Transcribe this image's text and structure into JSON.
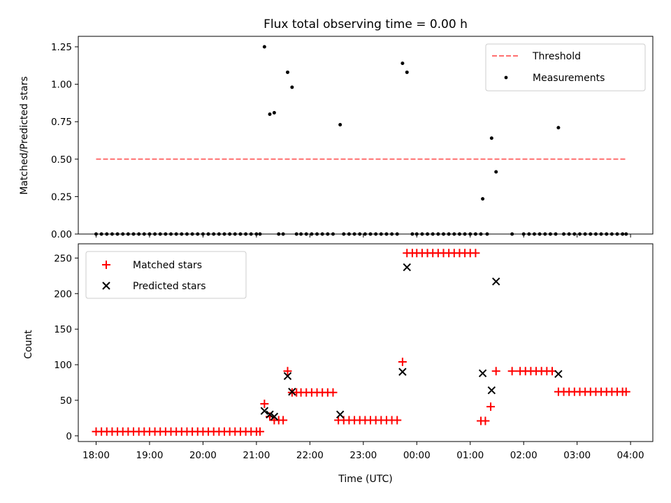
{
  "chart_data": [
    {
      "type": "line",
      "title": "Flux total observing time = 0.00 h",
      "xlabel": "",
      "ylabel": "Matched/Predicted stars",
      "xlim": [
        "17:40",
        "04:25"
      ],
      "ylim": [
        0,
        1.32
      ],
      "yticks": [
        "0.00",
        "0.25",
        "0.50",
        "0.75",
        "1.00",
        "1.25"
      ],
      "legend_position": "upper right",
      "series": [
        {
          "name": "Threshold",
          "style": "dashed",
          "color": "#ff6f6f",
          "points": [
            {
              "x": "18:00",
              "y": 0.5
            },
            {
              "x": "03:55",
              "y": 0.5
            }
          ]
        },
        {
          "name": "Measurements",
          "style": "dots",
          "color": "#000000",
          "points": [
            {
              "x": "18:00",
              "y": 0
            },
            {
              "x": "18:06",
              "y": 0
            },
            {
              "x": "18:12",
              "y": 0
            },
            {
              "x": "18:18",
              "y": 0
            },
            {
              "x": "18:24",
              "y": 0
            },
            {
              "x": "18:30",
              "y": 0
            },
            {
              "x": "18:36",
              "y": 0
            },
            {
              "x": "18:42",
              "y": 0
            },
            {
              "x": "18:48",
              "y": 0
            },
            {
              "x": "18:54",
              "y": 0
            },
            {
              "x": "19:00",
              "y": 0
            },
            {
              "x": "19:06",
              "y": 0
            },
            {
              "x": "19:12",
              "y": 0
            },
            {
              "x": "19:18",
              "y": 0
            },
            {
              "x": "19:24",
              "y": 0
            },
            {
              "x": "19:30",
              "y": 0
            },
            {
              "x": "19:36",
              "y": 0
            },
            {
              "x": "19:42",
              "y": 0
            },
            {
              "x": "19:48",
              "y": 0
            },
            {
              "x": "19:54",
              "y": 0
            },
            {
              "x": "20:00",
              "y": 0
            },
            {
              "x": "20:06",
              "y": 0
            },
            {
              "x": "20:12",
              "y": 0
            },
            {
              "x": "20:18",
              "y": 0
            },
            {
              "x": "20:24",
              "y": 0
            },
            {
              "x": "20:30",
              "y": 0
            },
            {
              "x": "20:36",
              "y": 0
            },
            {
              "x": "20:42",
              "y": 0
            },
            {
              "x": "20:48",
              "y": 0
            },
            {
              "x": "20:54",
              "y": 0
            },
            {
              "x": "21:00",
              "y": 0
            },
            {
              "x": "21:04",
              "y": 0
            },
            {
              "x": "21:09",
              "y": 1.25
            },
            {
              "x": "21:15",
              "y": 0.8
            },
            {
              "x": "21:20",
              "y": 0.81
            },
            {
              "x": "21:25",
              "y": 0
            },
            {
              "x": "21:30",
              "y": 0
            },
            {
              "x": "21:35",
              "y": 1.08
            },
            {
              "x": "21:40",
              "y": 0.98
            },
            {
              "x": "21:45",
              "y": 0
            },
            {
              "x": "21:50",
              "y": 0
            },
            {
              "x": "21:56",
              "y": 0
            },
            {
              "x": "22:02",
              "y": 0
            },
            {
              "x": "22:08",
              "y": 0
            },
            {
              "x": "22:14",
              "y": 0
            },
            {
              "x": "22:20",
              "y": 0
            },
            {
              "x": "22:26",
              "y": 0
            },
            {
              "x": "22:34",
              "y": 0.73
            },
            {
              "x": "22:38",
              "y": 0
            },
            {
              "x": "22:44",
              "y": 0
            },
            {
              "x": "22:50",
              "y": 0
            },
            {
              "x": "22:56",
              "y": 0
            },
            {
              "x": "23:02",
              "y": 0
            },
            {
              "x": "23:08",
              "y": 0
            },
            {
              "x": "23:14",
              "y": 0
            },
            {
              "x": "23:20",
              "y": 0
            },
            {
              "x": "23:26",
              "y": 0
            },
            {
              "x": "23:32",
              "y": 0
            },
            {
              "x": "23:38",
              "y": 0
            },
            {
              "x": "23:44",
              "y": 1.14
            },
            {
              "x": "23:49",
              "y": 1.08
            },
            {
              "x": "23:55",
              "y": 0
            },
            {
              "x": "00:00",
              "y": 0
            },
            {
              "x": "00:06",
              "y": 0
            },
            {
              "x": "00:12",
              "y": 0
            },
            {
              "x": "00:18",
              "y": 0
            },
            {
              "x": "00:24",
              "y": 0
            },
            {
              "x": "00:30",
              "y": 0
            },
            {
              "x": "00:36",
              "y": 0
            },
            {
              "x": "00:42",
              "y": 0
            },
            {
              "x": "00:48",
              "y": 0
            },
            {
              "x": "00:54",
              "y": 0
            },
            {
              "x": "01:00",
              "y": 0
            },
            {
              "x": "01:06",
              "y": 0
            },
            {
              "x": "01:12",
              "y": 0
            },
            {
              "x": "01:14",
              "y": 0.235
            },
            {
              "x": "01:19",
              "y": 0
            },
            {
              "x": "01:24",
              "y": 0.64
            },
            {
              "x": "01:29",
              "y": 0.415
            },
            {
              "x": "01:47",
              "y": 0
            },
            {
              "x": "02:00",
              "y": 0
            },
            {
              "x": "02:06",
              "y": 0
            },
            {
              "x": "02:12",
              "y": 0
            },
            {
              "x": "02:18",
              "y": 0
            },
            {
              "x": "02:24",
              "y": 0
            },
            {
              "x": "02:30",
              "y": 0
            },
            {
              "x": "02:36",
              "y": 0
            },
            {
              "x": "02:39",
              "y": 0.71
            },
            {
              "x": "02:45",
              "y": 0
            },
            {
              "x": "02:51",
              "y": 0
            },
            {
              "x": "02:57",
              "y": 0
            },
            {
              "x": "03:03",
              "y": 0
            },
            {
              "x": "03:09",
              "y": 0
            },
            {
              "x": "03:15",
              "y": 0
            },
            {
              "x": "03:21",
              "y": 0
            },
            {
              "x": "03:27",
              "y": 0
            },
            {
              "x": "03:33",
              "y": 0
            },
            {
              "x": "03:39",
              "y": 0
            },
            {
              "x": "03:45",
              "y": 0
            },
            {
              "x": "03:51",
              "y": 0
            },
            {
              "x": "03:55",
              "y": 0
            }
          ]
        }
      ]
    },
    {
      "type": "scatter",
      "title": "",
      "xlabel": "Time (UTC)",
      "ylabel": "Count",
      "xlim": [
        "17:40",
        "04:25"
      ],
      "ylim": [
        -8,
        270
      ],
      "yticks": [
        "0",
        "50",
        "100",
        "150",
        "200",
        "250"
      ],
      "xticks": [
        "18:00",
        "19:00",
        "20:00",
        "21:00",
        "22:00",
        "23:00",
        "00:00",
        "01:00",
        "02:00",
        "03:00",
        "04:00"
      ],
      "legend_position": "upper left",
      "series": [
        {
          "name": "Matched stars",
          "marker": "plus",
          "color": "#ff0000",
          "points": [
            {
              "x": "18:00",
              "y": 6
            },
            {
              "x": "18:06",
              "y": 6
            },
            {
              "x": "18:12",
              "y": 6
            },
            {
              "x": "18:18",
              "y": 6
            },
            {
              "x": "18:24",
              "y": 6
            },
            {
              "x": "18:30",
              "y": 6
            },
            {
              "x": "18:36",
              "y": 6
            },
            {
              "x": "18:42",
              "y": 6
            },
            {
              "x": "18:48",
              "y": 6
            },
            {
              "x": "18:54",
              "y": 6
            },
            {
              "x": "19:00",
              "y": 6
            },
            {
              "x": "19:06",
              "y": 6
            },
            {
              "x": "19:12",
              "y": 6
            },
            {
              "x": "19:18",
              "y": 6
            },
            {
              "x": "19:24",
              "y": 6
            },
            {
              "x": "19:30",
              "y": 6
            },
            {
              "x": "19:36",
              "y": 6
            },
            {
              "x": "19:42",
              "y": 6
            },
            {
              "x": "19:48",
              "y": 6
            },
            {
              "x": "19:54",
              "y": 6
            },
            {
              "x": "20:00",
              "y": 6
            },
            {
              "x": "20:06",
              "y": 6
            },
            {
              "x": "20:12",
              "y": 6
            },
            {
              "x": "20:18",
              "y": 6
            },
            {
              "x": "20:24",
              "y": 6
            },
            {
              "x": "20:30",
              "y": 6
            },
            {
              "x": "20:36",
              "y": 6
            },
            {
              "x": "20:42",
              "y": 6
            },
            {
              "x": "20:48",
              "y": 6
            },
            {
              "x": "20:54",
              "y": 6
            },
            {
              "x": "21:00",
              "y": 6
            },
            {
              "x": "21:04",
              "y": 6
            },
            {
              "x": "21:09",
              "y": 45
            },
            {
              "x": "21:15",
              "y": 27
            },
            {
              "x": "21:20",
              "y": 22
            },
            {
              "x": "21:25",
              "y": 22
            },
            {
              "x": "21:30",
              "y": 22
            },
            {
              "x": "21:35",
              "y": 91
            },
            {
              "x": "21:40",
              "y": 61
            },
            {
              "x": "21:45",
              "y": 61
            },
            {
              "x": "21:50",
              "y": 61
            },
            {
              "x": "21:56",
              "y": 61
            },
            {
              "x": "22:02",
              "y": 61
            },
            {
              "x": "22:08",
              "y": 61
            },
            {
              "x": "22:14",
              "y": 61
            },
            {
              "x": "22:20",
              "y": 61
            },
            {
              "x": "22:26",
              "y": 61
            },
            {
              "x": "22:32",
              "y": 22
            },
            {
              "x": "22:38",
              "y": 22
            },
            {
              "x": "22:44",
              "y": 22
            },
            {
              "x": "22:50",
              "y": 22
            },
            {
              "x": "22:56",
              "y": 22
            },
            {
              "x": "23:02",
              "y": 22
            },
            {
              "x": "23:08",
              "y": 22
            },
            {
              "x": "23:14",
              "y": 22
            },
            {
              "x": "23:20",
              "y": 22
            },
            {
              "x": "23:26",
              "y": 22
            },
            {
              "x": "23:32",
              "y": 22
            },
            {
              "x": "23:38",
              "y": 22
            },
            {
              "x": "23:44",
              "y": 104
            },
            {
              "x": "23:49",
              "y": 257
            },
            {
              "x": "23:55",
              "y": 257
            },
            {
              "x": "00:00",
              "y": 257
            },
            {
              "x": "00:06",
              "y": 257
            },
            {
              "x": "00:12",
              "y": 257
            },
            {
              "x": "00:18",
              "y": 257
            },
            {
              "x": "00:24",
              "y": 257
            },
            {
              "x": "00:30",
              "y": 257
            },
            {
              "x": "00:36",
              "y": 257
            },
            {
              "x": "00:42",
              "y": 257
            },
            {
              "x": "00:48",
              "y": 257
            },
            {
              "x": "00:54",
              "y": 257
            },
            {
              "x": "01:00",
              "y": 257
            },
            {
              "x": "01:06",
              "y": 257
            },
            {
              "x": "01:12",
              "y": 21
            },
            {
              "x": "01:17",
              "y": 21
            },
            {
              "x": "01:23",
              "y": 41
            },
            {
              "x": "01:29",
              "y": 91
            },
            {
              "x": "01:47",
              "y": 91
            },
            {
              "x": "01:56",
              "y": 91
            },
            {
              "x": "02:02",
              "y": 91
            },
            {
              "x": "02:08",
              "y": 91
            },
            {
              "x": "02:14",
              "y": 91
            },
            {
              "x": "02:20",
              "y": 91
            },
            {
              "x": "02:26",
              "y": 91
            },
            {
              "x": "02:32",
              "y": 91
            },
            {
              "x": "02:39",
              "y": 62
            },
            {
              "x": "02:45",
              "y": 62
            },
            {
              "x": "02:51",
              "y": 62
            },
            {
              "x": "02:57",
              "y": 62
            },
            {
              "x": "03:03",
              "y": 62
            },
            {
              "x": "03:09",
              "y": 62
            },
            {
              "x": "03:15",
              "y": 62
            },
            {
              "x": "03:21",
              "y": 62
            },
            {
              "x": "03:27",
              "y": 62
            },
            {
              "x": "03:33",
              "y": 62
            },
            {
              "x": "03:39",
              "y": 62
            },
            {
              "x": "03:45",
              "y": 62
            },
            {
              "x": "03:51",
              "y": 62
            },
            {
              "x": "03:55",
              "y": 62
            }
          ]
        },
        {
          "name": "Predicted stars",
          "marker": "x",
          "color": "#000000",
          "points": [
            {
              "x": "21:09",
              "y": 35
            },
            {
              "x": "21:15",
              "y": 30
            },
            {
              "x": "21:20",
              "y": 27
            },
            {
              "x": "21:35",
              "y": 84
            },
            {
              "x": "21:40",
              "y": 62
            },
            {
              "x": "22:34",
              "y": 30
            },
            {
              "x": "23:44",
              "y": 90
            },
            {
              "x": "23:49",
              "y": 237
            },
            {
              "x": "01:14",
              "y": 88
            },
            {
              "x": "01:24",
              "y": 64
            },
            {
              "x": "01:29",
              "y": 217
            },
            {
              "x": "02:39",
              "y": 87
            }
          ]
        }
      ]
    }
  ]
}
